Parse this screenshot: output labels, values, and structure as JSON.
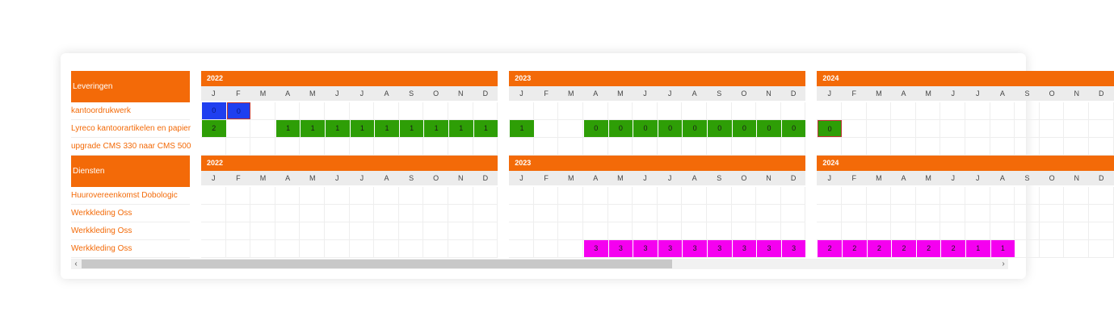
{
  "sections": [
    {
      "title": "Leveringen",
      "rows": [
        {
          "label": "kantoordrukwerk",
          "bars": [
            {
              "year": 0,
              "month": 0,
              "text": "0",
              "color": "#1f3ff0"
            },
            {
              "year": 0,
              "month": 1,
              "text": "0",
              "color": "#1f3ff0"
            }
          ]
        },
        {
          "label": "Lyreco kantoorartikelen en papier",
          "bars": [
            {
              "year": 0,
              "month": 0,
              "text": "2",
              "color": "#2e9e06"
            },
            {
              "year": 0,
              "month": 3,
              "text": "1",
              "color": "#2e9e06"
            },
            {
              "year": 0,
              "month": 4,
              "text": "1",
              "color": "#2e9e06"
            },
            {
              "year": 0,
              "month": 5,
              "text": "1",
              "color": "#2e9e06"
            },
            {
              "year": 0,
              "month": 6,
              "text": "1",
              "color": "#2e9e06"
            },
            {
              "year": 0,
              "month": 7,
              "text": "1",
              "color": "#2e9e06"
            },
            {
              "year": 0,
              "month": 8,
              "text": "1",
              "color": "#2e9e06"
            },
            {
              "year": 0,
              "month": 9,
              "text": "1",
              "color": "#2e9e06"
            },
            {
              "year": 0,
              "month": 10,
              "text": "1",
              "color": "#2e9e06"
            },
            {
              "year": 0,
              "month": 11,
              "text": "1",
              "color": "#2e9e06"
            },
            {
              "year": 1,
              "month": 0,
              "text": "1",
              "color": "#2e9e06"
            },
            {
              "year": 1,
              "month": 3,
              "text": "0",
              "color": "#2e9e06"
            },
            {
              "year": 1,
              "month": 4,
              "text": "0",
              "color": "#2e9e06"
            },
            {
              "year": 1,
              "month": 5,
              "text": "0",
              "color": "#2e9e06"
            },
            {
              "year": 1,
              "month": 6,
              "text": "0",
              "color": "#2e9e06"
            },
            {
              "year": 1,
              "month": 7,
              "text": "0",
              "color": "#2e9e06"
            },
            {
              "year": 1,
              "month": 8,
              "text": "0",
              "color": "#2e9e06"
            },
            {
              "year": 1,
              "month": 9,
              "text": "0",
              "color": "#2e9e06"
            },
            {
              "year": 1,
              "month": 10,
              "text": "0",
              "color": "#2e9e06"
            },
            {
              "year": 1,
              "month": 11,
              "text": "0",
              "color": "#2e9e06"
            },
            {
              "year": 2,
              "month": 0,
              "text": "0",
              "color": "#2e9e06"
            }
          ]
        },
        {
          "label": "upgrade CMS 330 naar CMS 500",
          "bars": []
        }
      ]
    },
    {
      "title": "Diensten",
      "rows": [
        {
          "label": "Huurovereenkomst Dobologic",
          "bars": []
        },
        {
          "label": "Werkkleding Oss",
          "bars": []
        },
        {
          "label": "Werkkleding Oss",
          "bars": []
        },
        {
          "label": "Werkkleding Oss",
          "bars": [
            {
              "year": 1,
              "month": 3,
              "text": "3",
              "color": "#f500f0"
            },
            {
              "year": 1,
              "month": 4,
              "text": "3",
              "color": "#f500f0"
            },
            {
              "year": 1,
              "month": 5,
              "text": "3",
              "color": "#f500f0"
            },
            {
              "year": 1,
              "month": 6,
              "text": "3",
              "color": "#f500f0"
            },
            {
              "year": 1,
              "month": 7,
              "text": "3",
              "color": "#f500f0"
            },
            {
              "year": 1,
              "month": 8,
              "text": "3",
              "color": "#f500f0"
            },
            {
              "year": 1,
              "month": 9,
              "text": "3",
              "color": "#f500f0"
            },
            {
              "year": 1,
              "month": 10,
              "text": "3",
              "color": "#f500f0"
            },
            {
              "year": 1,
              "month": 11,
              "text": "3",
              "color": "#f500f0"
            },
            {
              "year": 2,
              "month": 0,
              "text": "2",
              "color": "#f500f0"
            },
            {
              "year": 2,
              "month": 1,
              "text": "2",
              "color": "#f500f0"
            },
            {
              "year": 2,
              "month": 2,
              "text": "2",
              "color": "#f500f0"
            },
            {
              "year": 2,
              "month": 3,
              "text": "2",
              "color": "#f500f0"
            },
            {
              "year": 2,
              "month": 4,
              "text": "2",
              "color": "#f500f0"
            },
            {
              "year": 2,
              "month": 5,
              "text": "2",
              "color": "#f500f0"
            },
            {
              "year": 2,
              "month": 6,
              "text": "1",
              "color": "#f500f0"
            },
            {
              "year": 2,
              "month": 7,
              "text": "1",
              "color": "#f500f0"
            }
          ]
        }
      ]
    }
  ],
  "years": [
    "2022",
    "2023",
    "2024"
  ],
  "months": [
    "J",
    "F",
    "M",
    "A",
    "M",
    "J",
    "J",
    "A",
    "S",
    "O",
    "N",
    "D"
  ],
  "scroll": {
    "left_arrow": "‹",
    "right_arrow": "›",
    "position": 0.63
  },
  "colors": {
    "accent": "#f36a08",
    "header_bg": "#ececec"
  }
}
